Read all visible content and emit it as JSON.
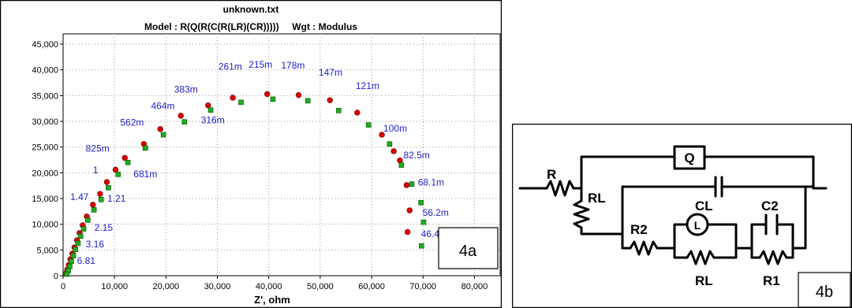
{
  "chart_data": {
    "type": "scatter",
    "title": "unknown.txt",
    "subtitle": "Model : R(Q(R(C(R(LR)(CR)))))     Wgt : Modulus",
    "xlabel": "Z', ohm",
    "ylabel": "",
    "xlim": [
      0,
      85000
    ],
    "ylim": [
      0,
      47000
    ],
    "xticks": [
      0,
      10000,
      20000,
      30000,
      40000,
      50000,
      60000,
      70000,
      80000
    ],
    "xtick_labels": [
      "0",
      "10,000",
      "20,000",
      "30,000",
      "40,000",
      "50,000",
      "60,000",
      "70,000",
      "80,000"
    ],
    "yticks": [
      0,
      5000,
      10000,
      15000,
      20000,
      25000,
      30000,
      35000,
      40000,
      45000
    ],
    "ytick_labels": [
      "0",
      "5,000",
      "10,000",
      "15,000",
      "20,000",
      "25,000",
      "30,000",
      "35,000",
      "40,000",
      "45,000"
    ],
    "grid": "dotted",
    "series": [
      {
        "marker": "circle",
        "color": "#dd0000",
        "x": [
          67000,
          67400,
          66800,
          65500,
          64300,
          62000,
          57200,
          51900,
          45800,
          39700,
          33000,
          28200,
          22900,
          18900,
          15700,
          12000,
          10200,
          8500,
          7200,
          5800,
          4600,
          3800,
          3200,
          2700,
          2200,
          1800,
          1400,
          1100,
          800,
          500
        ],
        "y": [
          8500,
          12700,
          17600,
          22400,
          24200,
          27400,
          31700,
          34100,
          35100,
          35300,
          34600,
          33100,
          31100,
          28500,
          25600,
          22900,
          20600,
          18200,
          15900,
          13800,
          11500,
          9800,
          8300,
          6900,
          5500,
          4300,
          3200,
          2100,
          1200,
          400
        ]
      },
      {
        "marker": "square",
        "color": "#22aa22",
        "x": [
          69700,
          70100,
          69600,
          67800,
          65800,
          63500,
          59400,
          53600,
          47600,
          40800,
          34600,
          28700,
          23600,
          19500,
          16000,
          12600,
          10700,
          8800,
          7400,
          6000,
          4800,
          4000,
          3400,
          2900,
          2400,
          2000,
          1600,
          1300,
          1000,
          700
        ],
        "y": [
          5800,
          10400,
          14200,
          17800,
          21500,
          25600,
          29300,
          32100,
          34000,
          34300,
          33700,
          32200,
          29900,
          27400,
          24800,
          22000,
          19700,
          17100,
          14800,
          12800,
          10800,
          9100,
          7700,
          6300,
          5100,
          3900,
          2800,
          1800,
          1000,
          300
        ]
      }
    ],
    "annotations": [
      {
        "text": "46.4m",
        "x": 69600,
        "y": 7500
      },
      {
        "text": "56.2m",
        "x": 69900,
        "y": 11600
      },
      {
        "text": "68.1m",
        "x": 69000,
        "y": 17500
      },
      {
        "text": "82.5m",
        "x": 66200,
        "y": 22800
      },
      {
        "text": "100m",
        "x": 62300,
        "y": 28000
      },
      {
        "text": "121m",
        "x": 56900,
        "y": 36300
      },
      {
        "text": "147m",
        "x": 49700,
        "y": 38900
      },
      {
        "text": "178m",
        "x": 42400,
        "y": 40300
      },
      {
        "text": "215m",
        "x": 36100,
        "y": 40400
      },
      {
        "text": "261m",
        "x": 30200,
        "y": 40000
      },
      {
        "text": "316m",
        "x": 26800,
        "y": 29600
      },
      {
        "text": "383m",
        "x": 21600,
        "y": 35600
      },
      {
        "text": "464m",
        "x": 17100,
        "y": 32400
      },
      {
        "text": "562m",
        "x": 11100,
        "y": 29200
      },
      {
        "text": "681m",
        "x": 13700,
        "y": 19100
      },
      {
        "text": "825m",
        "x": 4400,
        "y": 24100
      },
      {
        "text": "1",
        "x": 5800,
        "y": 19900
      },
      {
        "text": "1.21",
        "x": 8600,
        "y": 14400
      },
      {
        "text": "1.47",
        "x": 1400,
        "y": 14700
      },
      {
        "text": "2.15",
        "x": 6100,
        "y": 8700
      },
      {
        "text": "3.16",
        "x": 4400,
        "y": 5500
      },
      {
        "text": "6.81",
        "x": 2700,
        "y": 2300
      }
    ],
    "panel_label": "4a"
  },
  "circuit": {
    "labels": {
      "rs": "R",
      "rl": "RL",
      "q": "Q",
      "r2": "R2",
      "cl": "CL",
      "c2": "C2",
      "l": "L",
      "rl2": "RL",
      "r1": "R1"
    },
    "panel_label": "4b"
  }
}
